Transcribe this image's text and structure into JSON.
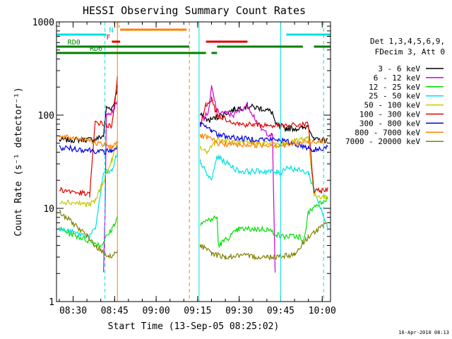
{
  "chart_data": {
    "type": "line",
    "title": "HESSI Observing Summary Count Rates",
    "xlabel": "Start Time (13-Sep-05 08:25:02)",
    "ylabel": "Count Rate (s⁻¹ detector⁻¹)",
    "x_unit": "hh:mm",
    "xlim": [
      "08:24",
      "10:03"
    ],
    "ylim": [
      1,
      1000
    ],
    "yscale": "log",
    "xticks": [
      "08:30",
      "08:45",
      "09:00",
      "09:15",
      "09:30",
      "09:45",
      "10:00"
    ],
    "yticks": [
      {
        "value": 1,
        "label": "1"
      },
      {
        "value": 10,
        "label": "10"
      },
      {
        "value": 100,
        "label": "100"
      },
      {
        "value": 1000,
        "label": "1000"
      }
    ],
    "timestamp": "16-Apr-2010 08:13",
    "legend_header": [
      "Det 1,3,4,5,6,9,",
      "FDecim 3, Att 0"
    ],
    "legend_placement": "right",
    "series": [
      {
        "name": "3 - 6 keV",
        "color": "#000000",
        "x": [
          "08:25",
          "08:38",
          "08:41",
          "08:42",
          "08:44",
          "08:45",
          "08:46",
          "09:16",
          "09:19",
          "09:22",
          "09:28",
          "09:33",
          "09:38",
          "09:42",
          "09:43",
          "09:47",
          "09:53",
          "09:55",
          "09:57",
          "10:02"
        ],
        "y": [
          54,
          55,
          60,
          120,
          120,
          140,
          200,
          100,
          88,
          95,
          115,
          125,
          118,
          108,
          80,
          72,
          72,
          78,
          54,
          54
        ]
      },
      {
        "name": "6 - 12 keV",
        "color": "#d000d0",
        "x": [
          "08:41",
          "08:41.5",
          "08:42",
          "08:44",
          "08:45",
          "08:46",
          "09:16",
          "09:19",
          "09:20",
          "09:22",
          "09:28",
          "09:33",
          "09:38",
          "09:42",
          "09:43"
        ],
        "y": [
          2,
          8,
          100,
          110,
          120,
          150,
          85,
          110,
          200,
          110,
          100,
          130,
          70,
          60,
          2
        ]
      },
      {
        "name": "12 - 25 keV",
        "color": "#00e000",
        "x": [
          "08:25",
          "08:40",
          "08:44",
          "08:46",
          "09:16",
          "09:22",
          "09:22.5",
          "09:30",
          "09:40",
          "09:45",
          "09:52",
          "09:53",
          "09:55",
          "09:58",
          "10:02"
        ],
        "y": [
          6,
          4,
          6,
          8,
          7,
          8,
          4,
          6,
          6,
          5,
          5,
          4,
          9,
          11,
          13
        ]
      },
      {
        "name": "25 - 50 keV",
        "color": "#00e0e0",
        "x": [
          "08:25",
          "08:36",
          "08:38",
          "08:41",
          "08:44",
          "08:46",
          "09:16",
          "09:18",
          "09:20",
          "09:22",
          "09:30",
          "09:40",
          "09:45",
          "09:47",
          "09:55",
          "10:02"
        ],
        "y": [
          6,
          5,
          6,
          24,
          25,
          40,
          32,
          24,
          20,
          36,
          25,
          25,
          24,
          28,
          24,
          6
        ]
      },
      {
        "name": "50 - 100 keV",
        "color": "#c8c800",
        "x": [
          "08:25",
          "08:36",
          "08:38",
          "08:44",
          "08:46",
          "09:16",
          "09:18",
          "09:21",
          "09:22",
          "09:30",
          "09:40",
          "09:45",
          "09:55",
          "09:57",
          "10:02"
        ],
        "y": [
          12,
          11,
          12,
          33,
          50,
          45,
          40,
          50,
          55,
          50,
          50,
          48,
          58,
          14,
          13
        ]
      },
      {
        "name": "100 - 300 keV",
        "color": "#e00000",
        "x": [
          "08:25",
          "08:36",
          "08:38",
          "08:44",
          "08:46",
          "09:16",
          "09:18",
          "09:20",
          "09:22",
          "09:30",
          "09:40",
          "09:45",
          "09:55",
          "09:57",
          "10:02"
        ],
        "y": [
          16,
          14,
          85,
          75,
          260,
          76,
          130,
          150,
          100,
          80,
          78,
          76,
          80,
          15,
          16
        ]
      },
      {
        "name": "300 - 800 keV",
        "color": "#0000e0",
        "x": [
          "08:25",
          "08:37",
          "08:41",
          "08:44",
          "08:46",
          "09:16",
          "09:18",
          "09:20",
          "09:22",
          "09:30",
          "09:40",
          "09:45",
          "09:55",
          "09:57",
          "10:02"
        ],
        "y": [
          45,
          42,
          40,
          42,
          45,
          80,
          74,
          70,
          62,
          56,
          55,
          54,
          45,
          42,
          46
        ]
      },
      {
        "name": "800 - 7000 keV",
        "color": "#ff8000",
        "x": [
          "08:25",
          "08:36",
          "08:38",
          "08:41",
          "08:44",
          "08:46",
          "09:16",
          "09:18",
          "09:20",
          "09:22",
          "09:30",
          "09:40",
          "09:45",
          "09:55",
          "10:02"
        ],
        "y": [
          58,
          55,
          50,
          48,
          46,
          50,
          60,
          58,
          55,
          50,
          48,
          48,
          47,
          52,
          54
        ]
      },
      {
        "name": "7000 - 20000 keV",
        "color": "#808000",
        "x": [
          "08:25",
          "08:30",
          "08:35",
          "08:40",
          "08:44",
          "08:46",
          "09:16",
          "09:20",
          "09:25",
          "09:30",
          "09:40",
          "09:45",
          "09:50",
          "09:55",
          "10:02"
        ],
        "y": [
          9,
          7,
          5,
          3.5,
          3,
          3.5,
          4,
          3.3,
          3,
          3.1,
          3,
          3.1,
          3.2,
          5,
          7
        ]
      }
    ],
    "flag_bars": [
      {
        "label": "S",
        "color": "#ff8000",
        "intervals": [
          [
            "08:47",
            "09:11"
          ]
        ]
      },
      {
        "label": "N",
        "color": "#00e0e0",
        "intervals": [
          [
            "08:24",
            "08:42"
          ],
          [
            "09:47",
            "10:03"
          ]
        ]
      },
      {
        "label": "F",
        "color": "#e00000",
        "intervals": [
          [
            "08:44",
            "08:47"
          ],
          [
            "09:18",
            "09:33"
          ]
        ]
      },
      {
        "label": "RD0",
        "color": "#008000",
        "intervals": [
          [
            "08:24",
            "09:12"
          ],
          [
            "09:22",
            "09:53"
          ],
          [
            "09:57",
            "10:03"
          ]
        ]
      },
      {
        "label": "RD6",
        "color": "#008000",
        "intervals": [
          [
            "08:24",
            "09:18"
          ],
          [
            "09:20",
            "09:22"
          ]
        ]
      }
    ],
    "vertical_markers": [
      {
        "x": "08:41.5",
        "color": "#00e0e0",
        "style": "dashed"
      },
      {
        "x": "08:46",
        "color": "#ff8000",
        "style": "solid"
      },
      {
        "x": "09:12",
        "color": "#ff8000",
        "style": "dashed"
      },
      {
        "x": "09:15.5",
        "color": "#00e0e0",
        "style": "solid"
      },
      {
        "x": "09:45",
        "color": "#00e0e0",
        "style": "solid"
      },
      {
        "x": "10:00.5",
        "color": "#00e0e0",
        "style": "dashed"
      }
    ]
  }
}
